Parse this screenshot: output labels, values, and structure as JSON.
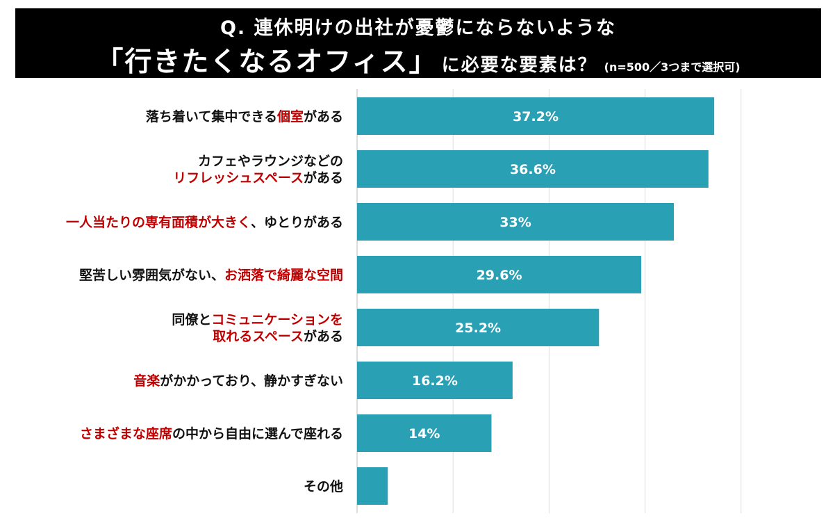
{
  "header": {
    "title_line1": "Q. 連休明けの出社が憂鬱にならないような",
    "title_main": "「行きたくなるオフィス」",
    "title_rest": "に必要な要素は？",
    "title_note": "(n=500／3つまで選択可)"
  },
  "colors": {
    "bar": "#2aa0b4",
    "accent": "#c00000",
    "text": "#111111",
    "header_bg": "#000000",
    "grid": "#dddddd"
  },
  "chart_data": {
    "type": "bar",
    "orientation": "horizontal",
    "xlim": [
      0,
      50
    ],
    "grid": true,
    "categories": [
      [
        [
          {
            "t": "落ち着いて集中できる",
            "r": false
          },
          {
            "t": "個室",
            "r": true
          },
          {
            "t": "がある",
            "r": false
          }
        ]
      ],
      [
        [
          {
            "t": "カフェやラウンジなどの",
            "r": false
          }
        ],
        [
          {
            "t": "リフレッシュスペース",
            "r": true
          },
          {
            "t": "がある",
            "r": false
          }
        ]
      ],
      [
        [
          {
            "t": "一人当たりの専有面積が大きく",
            "r": true
          },
          {
            "t": "、ゆとりがある",
            "r": false
          }
        ]
      ],
      [
        [
          {
            "t": "堅苦しい雰囲気がない、",
            "r": false
          },
          {
            "t": "お洒落で綺麗な空間",
            "r": true
          }
        ]
      ],
      [
        [
          {
            "t": "同僚と",
            "r": false
          },
          {
            "t": "コミュニケーションを",
            "r": true
          }
        ],
        [
          {
            "t": "取れるスペース",
            "r": true
          },
          {
            "t": "がある",
            "r": false
          }
        ]
      ],
      [
        [
          {
            "t": "音楽",
            "r": true
          },
          {
            "t": "がかかっており、静かすぎない",
            "r": false
          }
        ]
      ],
      [
        [
          {
            "t": "さまざまな座席",
            "r": true
          },
          {
            "t": "の中から自由に選んで座れる",
            "r": false
          }
        ]
      ],
      [
        [
          {
            "t": "その他",
            "r": false
          }
        ]
      ]
    ],
    "values": [
      37.2,
      36.6,
      33,
      29.6,
      25.2,
      16.2,
      14,
      3.2
    ],
    "value_labels": [
      "37.2%",
      "36.6%",
      "33%",
      "29.6%",
      "25.2%",
      "16.2%",
      "14%",
      ""
    ]
  }
}
